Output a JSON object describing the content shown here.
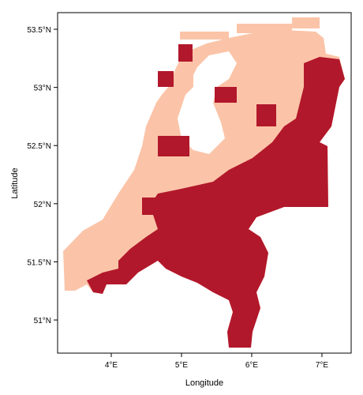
{
  "chart_data": {
    "type": "raster-map",
    "xlabel": "Longitude",
    "ylabel": "Latitude",
    "xlim": [
      3.236,
      7.416
    ],
    "ylim": [
      50.715,
      53.643
    ],
    "xticks": [
      {
        "value": 4,
        "label": "4°E"
      },
      {
        "value": 5,
        "label": "5°E"
      },
      {
        "value": 6,
        "label": "6°E"
      },
      {
        "value": 7,
        "label": "7°E"
      }
    ],
    "yticks": [
      {
        "value": 51,
        "label": "51°N"
      },
      {
        "value": 51.5,
        "label": "51.5°N"
      },
      {
        "value": 52,
        "label": "52°N"
      },
      {
        "value": 52.5,
        "label": "52.5°N"
      },
      {
        "value": 53,
        "label": "53°N"
      },
      {
        "value": 53.5,
        "label": "53.5°N"
      }
    ],
    "colors": [
      "#fbc4a8",
      "#b2182b"
    ]
  }
}
